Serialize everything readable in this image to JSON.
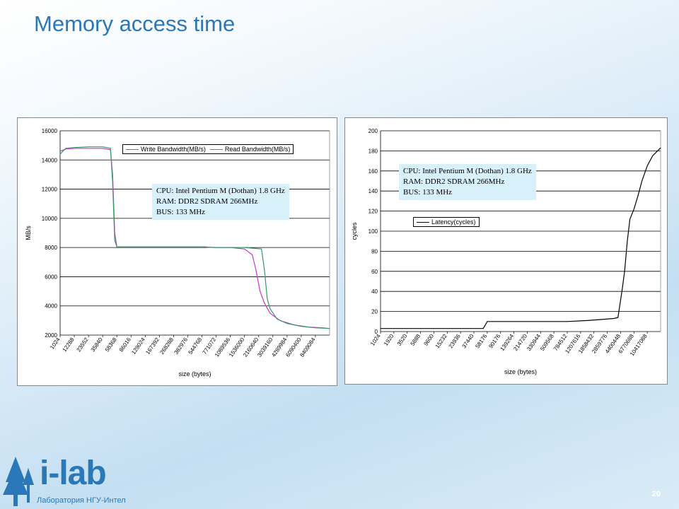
{
  "slide": {
    "title": "Memory access time",
    "page_number": "20",
    "logo_text": "i-lab",
    "logo_subtitle": "Лаборатория НГУ-Интел"
  },
  "colors": {
    "title": "#2a78b8",
    "write": "#cc33cc",
    "read": "#339966",
    "latency": "#000000",
    "annotation_bg": "#d8f0fa"
  },
  "chart_data": [
    {
      "type": "line",
      "xlabel": "size (bytes)",
      "ylabel": "MB/s",
      "ylim": [
        2000,
        16000
      ],
      "yticks": [
        2000,
        4000,
        6000,
        8000,
        10000,
        12000,
        14000,
        16000
      ],
      "x_tick_labels": [
        "1024",
        "12288",
        "23552",
        "35840",
        "58368",
        "86016",
        "129024",
        "167392",
        "268288",
        "382976",
        "544768",
        "771072",
        "1089536",
        "1536000",
        "2160640",
        "3039160",
        "4289984",
        "6090400",
        "8409084"
      ],
      "grid": true,
      "legend_position": "top-right",
      "series": [
        {
          "name": "Write Bandwidth(MB/s)",
          "color": "#cc33cc",
          "points": [
            [
              0,
              14600
            ],
            [
              0.4,
              14750
            ],
            [
              1,
              14800
            ],
            [
              2,
              14800
            ],
            [
              3,
              14800
            ],
            [
              3.55,
              14700
            ],
            [
              3.7,
              13000
            ],
            [
              3.85,
              9000
            ],
            [
              4,
              8050
            ],
            [
              6,
              8050
            ],
            [
              8,
              8050
            ],
            [
              10,
              8050
            ],
            [
              11,
              8000
            ],
            [
              12,
              8000
            ],
            [
              13,
              7900
            ],
            [
              13.55,
              7500
            ],
            [
              13.8,
              6500
            ],
            [
              14.1,
              5000
            ],
            [
              14.4,
              4200
            ],
            [
              14.8,
              3500
            ],
            [
              15.5,
              3000
            ],
            [
              16.5,
              2700
            ],
            [
              17.5,
              2550
            ],
            [
              18.5,
              2500
            ],
            [
              19,
              2450
            ]
          ]
        },
        {
          "name": "Read Bandwidth(MB/s)",
          "color": "#339966",
          "points": [
            [
              0,
              14400
            ],
            [
              0.4,
              14800
            ],
            [
              1,
              14850
            ],
            [
              2,
              14900
            ],
            [
              3,
              14900
            ],
            [
              3.55,
              14800
            ],
            [
              3.7,
              12500
            ],
            [
              3.85,
              8500
            ],
            [
              4,
              8050
            ],
            [
              6,
              8050
            ],
            [
              8,
              8050
            ],
            [
              10,
              8050
            ],
            [
              11,
              8000
            ],
            [
              12,
              8000
            ],
            [
              13,
              8000
            ],
            [
              14.2,
              7900
            ],
            [
              14.4,
              6500
            ],
            [
              14.6,
              4500
            ],
            [
              14.8,
              3800
            ],
            [
              15.3,
              3100
            ],
            [
              16,
              2800
            ],
            [
              17,
              2600
            ],
            [
              18,
              2500
            ],
            [
              19,
              2450
            ]
          ]
        }
      ],
      "annotation": [
        "CPU: Intel Pentium M (Dothan) 1.8 GHz",
        "RAM: DDR2 SDRAM 266MHz",
        "BUS: 133 MHz"
      ]
    },
    {
      "type": "line",
      "xlabel": "size (bytes)",
      "ylabel": "cycles",
      "ylim": [
        0,
        200
      ],
      "yticks": [
        0,
        20,
        40,
        60,
        80,
        100,
        120,
        140,
        160,
        180,
        200
      ],
      "x_tick_labels": [
        "1024",
        "1920",
        "3520",
        "5888",
        "9600",
        "15232",
        "23936",
        "37440",
        "58176",
        "90176",
        "139264",
        "214720",
        "330944",
        "509568",
        "784512",
        "1207616",
        "1858432",
        "2859776",
        "4400448",
        "6770688",
        "10417088"
      ],
      "grid": true,
      "legend_position": "middle-left",
      "series": [
        {
          "name": "Latency(cycles)",
          "color": "#000000",
          "points": [
            [
              0,
              3
            ],
            [
              4,
              3
            ],
            [
              7.7,
              3
            ],
            [
              8,
              10
            ],
            [
              9,
              10
            ],
            [
              12,
              10
            ],
            [
              14,
              10
            ],
            [
              15.5,
              11
            ],
            [
              16.5,
              12
            ],
            [
              17.5,
              13
            ],
            [
              17.8,
              14
            ],
            [
              18.1,
              40
            ],
            [
              18.3,
              60
            ],
            [
              18.5,
              90
            ],
            [
              18.7,
              112
            ],
            [
              19,
              122
            ],
            [
              19.3,
              135
            ],
            [
              19.6,
              150
            ],
            [
              20,
              165
            ],
            [
              20.4,
              175
            ],
            [
              21,
              183
            ]
          ]
        }
      ],
      "annotation": [
        "CPU: Intel Pentium M (Dothan) 1.8 GHz",
        "RAM: DDR2 SDRAM 266MHz",
        "BUS: 133 MHz"
      ]
    }
  ]
}
